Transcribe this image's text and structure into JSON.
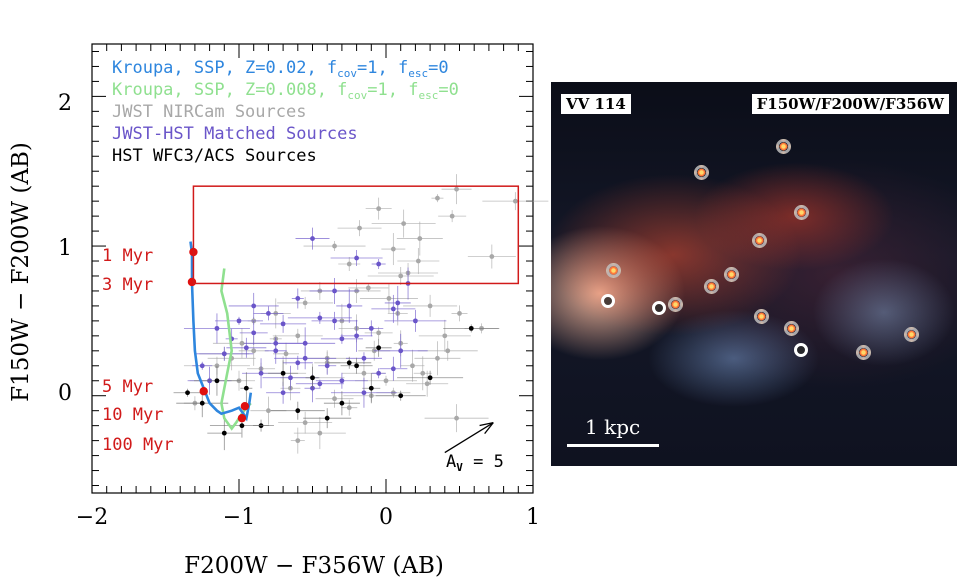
{
  "chart_data": {
    "type": "scatter",
    "xlabel": "F200W − F356W (AB)",
    "ylabel": "F150W − F200W (AB)",
    "xlim": [
      -2,
      1
    ],
    "ylim": [
      -0.65,
      2.35
    ],
    "xticks": [
      -2,
      -1,
      0,
      1
    ],
    "yticks": [
      0,
      1,
      2
    ],
    "xtick_labels": [
      "−2",
      "−1",
      "0",
      "1"
    ],
    "ytick_labels": [
      "0",
      "1",
      "2"
    ],
    "legend": [
      {
        "label": "Kroupa, SSP, Z=0.02, f",
        "sub1": "cov",
        "mid": "=1, f",
        "sub2": "esc",
        "end": "=0",
        "color": "#2e86de"
      },
      {
        "label": "Kroupa, SSP, Z=0.008, f",
        "sub1": "cov",
        "mid": "=1, f",
        "sub2": "esc",
        "end": "=0",
        "color": "#8fe08f"
      },
      {
        "label": "JWST NIRCam Sources",
        "color": "#a8a8a8"
      },
      {
        "label": "JWST-HST Matched Sources",
        "color": "#6a55c9"
      },
      {
        "label": "HST WFC3/ACS Sources",
        "color": "#000000"
      }
    ],
    "age_labels": [
      "1 Myr",
      "3 Myr",
      "5 Myr",
      "10 Myr",
      "100 Myr"
    ],
    "age_label_color": "#d11a1a",
    "selection_box": {
      "x": [
        -1.31,
        0.9
      ],
      "y": [
        0.75,
        1.4
      ],
      "color": "#d11a1a"
    },
    "extinction": {
      "prefix": "A",
      "sub": "V",
      "suffix": " = 5",
      "from": [
        0.4,
        -0.38
      ],
      "to": [
        0.73,
        -0.18
      ]
    },
    "track_solar": {
      "color": "#2e86de",
      "x": [
        -1.33,
        -1.32,
        -1.32,
        -1.31,
        -1.3,
        -1.28,
        -1.24,
        -1.2,
        -1.15,
        -1.12,
        -1.05,
        -1.0,
        -0.97,
        -0.95,
        -0.93,
        -0.92
      ],
      "y": [
        1.03,
        0.95,
        0.75,
        0.5,
        0.3,
        0.15,
        0.05,
        -0.05,
        -0.1,
        -0.12,
        -0.1,
        -0.08,
        -0.12,
        -0.15,
        -0.05,
        0.02
      ]
    },
    "track_lowz": {
      "color": "#8fe08f",
      "x": [
        -1.1,
        -1.12,
        -1.08,
        -1.05,
        -1.08,
        -1.1,
        -1.12,
        -1.1,
        -1.05,
        -1.02,
        -0.98,
        -0.95,
        -0.92
      ],
      "y": [
        0.85,
        0.7,
        0.55,
        0.3,
        0.15,
        0.05,
        -0.05,
        -0.15,
        -0.22,
        -0.18,
        -0.12,
        -0.08,
        -0.05
      ]
    },
    "age_points": {
      "color": "#e01010",
      "x": [
        -1.31,
        -1.32,
        -1.24,
        -0.96,
        -0.98
      ],
      "y": [
        0.96,
        0.76,
        0.03,
        -0.07,
        -0.15
      ]
    },
    "series": [
      {
        "name": "JWST NIRCam Sources",
        "color": "#a8a8a8",
        "x": [
          0.35,
          0.48,
          0.72,
          0.88,
          0.45,
          0.23,
          0.12,
          -0.05,
          -0.18,
          -0.35,
          0.05,
          0.22,
          0.15,
          -0.25,
          -0.12,
          0.02,
          0.08,
          -0.45,
          -0.55,
          -0.3,
          -0.2,
          0.3,
          0.5,
          0.65,
          0.4,
          0.1,
          -0.08,
          -0.6,
          -0.75,
          -0.9,
          -1.05,
          -1.15,
          -0.85,
          -0.7,
          -0.5,
          -0.4,
          -0.15,
          0.0,
          0.18,
          0.28,
          0.42,
          -1.3,
          -1.2,
          -0.98,
          -0.65,
          -0.35,
          -0.1,
          0.25,
          -0.8,
          -0.55,
          -0.25,
          0.05,
          -0.45,
          -0.6,
          -1.0,
          -1.1,
          -0.9,
          -0.75,
          -0.2,
          0.1,
          -0.05,
          0.35,
          0.48,
          -0.68,
          -0.4
        ],
        "y": [
          1.32,
          1.38,
          0.93,
          1.3,
          1.2,
          1.05,
          1.15,
          1.25,
          1.12,
          1.0,
          0.98,
          0.9,
          0.82,
          0.88,
          0.72,
          0.65,
          0.55,
          0.7,
          0.62,
          0.5,
          0.45,
          0.6,
          0.55,
          0.45,
          0.4,
          0.35,
          0.3,
          0.4,
          0.38,
          0.3,
          0.25,
          0.2,
          0.18,
          0.15,
          0.12,
          0.22,
          0.15,
          0.1,
          0.2,
          0.08,
          0.3,
          -0.05,
          0.1,
          0.35,
          0.05,
          -0.02,
          0.0,
          0.15,
          -0.1,
          -0.18,
          -0.08,
          0.02,
          -0.25,
          -0.3,
          0.1,
          0.28,
          0.5,
          0.55,
          0.7,
          0.8,
          0.42,
          0.25,
          -0.15,
          0.28,
          0.25
        ]
      },
      {
        "name": "JWST-HST Matched Sources",
        "color": "#6a55c9",
        "x": [
          -0.5,
          -0.2,
          -0.05,
          0.15,
          -0.35,
          -0.6,
          -0.8,
          -1.0,
          -1.15,
          -0.9,
          -0.7,
          -0.45,
          -0.25,
          0.05,
          0.2,
          -0.1,
          -0.3,
          -0.55,
          -0.75,
          -0.95,
          -1.1,
          -1.25,
          -0.85,
          -0.65,
          -0.4,
          -0.15,
          0.1,
          -0.5,
          -0.7,
          -0.3,
          -0.05,
          -0.2,
          -0.9,
          -1.05,
          -0.6,
          -0.45,
          -0.15,
          0.05,
          -0.35,
          -0.75,
          0.08,
          -1.2,
          -0.55
        ],
        "y": [
          1.05,
          0.92,
          0.88,
          0.75,
          0.7,
          0.65,
          0.55,
          0.5,
          0.45,
          0.42,
          0.48,
          0.52,
          0.6,
          0.58,
          0.5,
          0.45,
          0.38,
          0.35,
          0.3,
          0.32,
          0.28,
          0.2,
          0.15,
          0.12,
          0.2,
          0.25,
          0.3,
          0.05,
          0.02,
          0.1,
          0.15,
          0.4,
          0.6,
          0.38,
          0.22,
          0.08,
          0.02,
          0.18,
          0.5,
          0.35,
          0.62,
          0.1,
          0.25
        ]
      },
      {
        "name": "HST WFC3/ACS Sources",
        "color": "#000000",
        "x": [
          0.58,
          -0.1,
          -0.3,
          -0.6,
          -0.85,
          -1.1,
          -1.25,
          -0.5,
          -0.2,
          0.1,
          -0.95,
          -0.7,
          -0.4,
          0.3,
          -1.35,
          -1.15,
          -0.98,
          -0.05,
          -0.25
        ],
        "y": [
          0.45,
          0.05,
          -0.05,
          -0.1,
          -0.2,
          -0.25,
          -0.05,
          0.12,
          0.2,
          0.0,
          0.05,
          0.15,
          -0.15,
          0.12,
          0.02,
          0.1,
          -0.2,
          0.32,
          0.22
        ]
      }
    ]
  },
  "image_panel": {
    "name_label": "VV 114",
    "filter_label": "F150W/F200W/F356W",
    "scale_label": "1 kpc"
  }
}
